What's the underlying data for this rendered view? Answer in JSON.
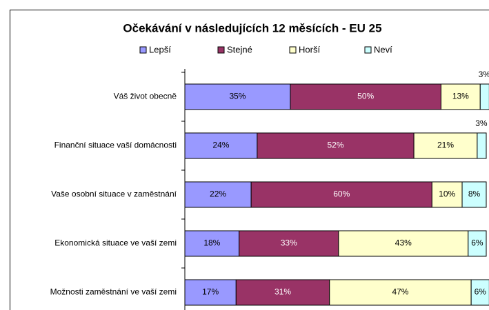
{
  "chart_data": {
    "type": "stacked-bar-horizontal",
    "title": "Očekávání v následujících 12 měsících - EU 25",
    "categories": [
      "Váš život obecně",
      "Finanční situace vaší domácnosti",
      "Vaše osobní situace v zaměstnání",
      "Ekonomická situace ve vaší zemi",
      "Možnosti zaměstnání ve vaší zemi"
    ],
    "series": [
      {
        "name": "Lepší",
        "color": "#9999ff",
        "values": [
          35,
          24,
          22,
          18,
          17
        ],
        "value_labels": [
          "35%",
          "24%",
          "22%",
          "18%",
          "17%"
        ]
      },
      {
        "name": "Stejné",
        "color": "#993366",
        "values": [
          50,
          52,
          60,
          33,
          31
        ],
        "value_labels": [
          "50%",
          "52%",
          "60%",
          "33%",
          "31%"
        ]
      },
      {
        "name": "Horší",
        "color": "#ffffcc",
        "values": [
          13,
          21,
          10,
          43,
          47
        ],
        "value_labels": [
          "13%",
          "21%",
          "10%",
          "43%",
          "47%"
        ]
      },
      {
        "name": "Neví",
        "color": "#ccffff",
        "values": [
          3,
          3,
          8,
          6,
          6
        ],
        "value_labels": [
          "3%",
          "3%",
          "8%",
          "6%",
          "6%"
        ]
      }
    ],
    "xlim": [
      0,
      100
    ],
    "legend": "top"
  }
}
